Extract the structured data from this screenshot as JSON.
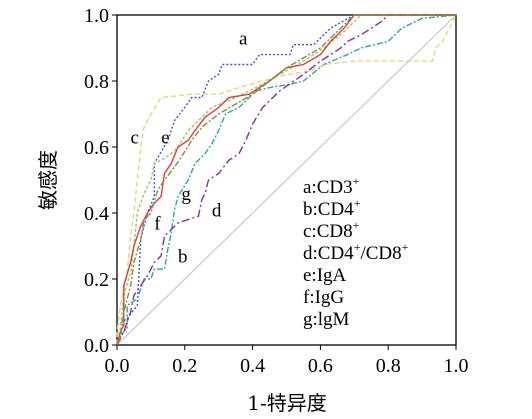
{
  "chart_data": {
    "type": "line",
    "title": "",
    "xlabel": "1-特异度",
    "ylabel": "敏感度",
    "xlim": [
      0,
      1
    ],
    "ylim": [
      0,
      1
    ],
    "grid": false,
    "legend_position": "bottom-right",
    "x_ticks": [
      "0.0",
      "0.2",
      "0.4",
      "0.6",
      "0.8",
      "1.0"
    ],
    "y_ticks": [
      "0.0",
      "0.2",
      "0.4",
      "0.6",
      "0.8",
      "1.0"
    ],
    "reference_line": {
      "x": [
        0,
        1
      ],
      "y": [
        0,
        1
      ],
      "color": "#c8c8c8"
    },
    "legend": [
      {
        "key": "a",
        "sep": ":",
        "base": "CD3",
        "sup": "+",
        "base2": "",
        "sup2": ""
      },
      {
        "key": "b",
        "sep": ":",
        "base": "CD4",
        "sup": "+",
        "base2": "",
        "sup2": ""
      },
      {
        "key": "c",
        "sep": ":",
        "base": "CD8",
        "sup": "+",
        "base2": "",
        "sup2": ""
      },
      {
        "key": "d",
        "sep": ":",
        "base": "CD4",
        "sup": "+",
        "base2": "/CD8",
        "sup2": "+"
      },
      {
        "key": "e",
        "sep": ":",
        "base": "IgA",
        "sup": "",
        "base2": "",
        "sup2": ""
      },
      {
        "key": "f",
        "sep": ":",
        "base": "IgG",
        "sup": "",
        "base2": "",
        "sup2": ""
      },
      {
        "key": "g",
        "sep": ":",
        "base": "lgM",
        "sup": "",
        "base2": "",
        "sup2": ""
      }
    ],
    "series": [
      {
        "id": "a",
        "label": "a",
        "label_at": [
          0.36,
          0.91
        ],
        "color": "#3a55c8",
        "dash": "2,2",
        "points": [
          [
            0,
            0
          ],
          [
            0,
            0.06
          ],
          [
            0.03,
            0.08
          ],
          [
            0.06,
            0.12
          ],
          [
            0.07,
            0.32
          ],
          [
            0.09,
            0.4
          ],
          [
            0.11,
            0.45
          ],
          [
            0.11,
            0.55
          ],
          [
            0.15,
            0.62
          ],
          [
            0.17,
            0.68
          ],
          [
            0.2,
            0.72
          ],
          [
            0.22,
            0.75
          ],
          [
            0.25,
            0.75
          ],
          [
            0.27,
            0.8
          ],
          [
            0.3,
            0.82
          ],
          [
            0.31,
            0.85
          ],
          [
            0.4,
            0.85
          ],
          [
            0.42,
            0.88
          ],
          [
            0.51,
            0.88
          ],
          [
            0.52,
            0.91
          ],
          [
            0.58,
            0.91
          ],
          [
            0.6,
            0.93
          ],
          [
            0.63,
            0.96
          ],
          [
            0.7,
            1.0
          ],
          [
            1.0,
            1.0
          ]
        ]
      },
      {
        "id": "b",
        "label": "b",
        "label_at": [
          0.18,
          0.25
        ],
        "color": "#2aa6a6",
        "dash": "6,2,2,2",
        "points": [
          [
            0,
            0
          ],
          [
            0.01,
            0.03
          ],
          [
            0.03,
            0.05
          ],
          [
            0.03,
            0.12
          ],
          [
            0.06,
            0.14
          ],
          [
            0.08,
            0.2
          ],
          [
            0.1,
            0.2
          ],
          [
            0.11,
            0.23
          ],
          [
            0.14,
            0.23
          ],
          [
            0.15,
            0.29
          ],
          [
            0.16,
            0.34
          ],
          [
            0.17,
            0.41
          ],
          [
            0.18,
            0.45
          ],
          [
            0.21,
            0.5
          ],
          [
            0.23,
            0.55
          ],
          [
            0.26,
            0.58
          ],
          [
            0.28,
            0.61
          ],
          [
            0.3,
            0.65
          ],
          [
            0.32,
            0.7
          ],
          [
            0.36,
            0.72
          ],
          [
            0.41,
            0.77
          ],
          [
            0.45,
            0.78
          ],
          [
            0.51,
            0.79
          ],
          [
            0.55,
            0.8
          ],
          [
            0.61,
            0.85
          ],
          [
            0.68,
            0.88
          ],
          [
            0.72,
            0.9
          ],
          [
            0.8,
            0.92
          ],
          [
            0.84,
            0.96
          ],
          [
            0.9,
            0.99
          ],
          [
            1.0,
            1.0
          ]
        ]
      },
      {
        "id": "c",
        "label": "c",
        "label_at": [
          0.04,
          0.61
        ],
        "color": "#e0d878",
        "dash": "5,3",
        "points": [
          [
            0,
            0
          ],
          [
            0,
            0.04
          ],
          [
            0.01,
            0.12
          ],
          [
            0.03,
            0.22
          ],
          [
            0.04,
            0.33
          ],
          [
            0.05,
            0.4
          ],
          [
            0.06,
            0.5
          ],
          [
            0.07,
            0.6
          ],
          [
            0.08,
            0.66
          ],
          [
            0.1,
            0.7
          ],
          [
            0.13,
            0.75
          ],
          [
            0.22,
            0.76
          ],
          [
            0.3,
            0.76
          ],
          [
            0.36,
            0.78
          ],
          [
            0.43,
            0.8
          ],
          [
            0.5,
            0.82
          ],
          [
            0.57,
            0.83
          ],
          [
            0.61,
            0.85
          ],
          [
            0.7,
            0.86
          ],
          [
            0.93,
            0.86
          ],
          [
            0.94,
            0.9
          ],
          [
            0.96,
            0.92
          ],
          [
            1.0,
            1.0
          ]
        ]
      },
      {
        "id": "d",
        "label": "d",
        "label_at": [
          0.28,
          0.39
        ],
        "color": "#8a2aa6",
        "dash": "8,3,2,3",
        "points": [
          [
            0,
            0
          ],
          [
            0.02,
            0.04
          ],
          [
            0.04,
            0.1
          ],
          [
            0.05,
            0.15
          ],
          [
            0.07,
            0.18
          ],
          [
            0.09,
            0.21
          ],
          [
            0.11,
            0.25
          ],
          [
            0.13,
            0.27
          ],
          [
            0.14,
            0.33
          ],
          [
            0.16,
            0.35
          ],
          [
            0.17,
            0.36
          ],
          [
            0.18,
            0.37
          ],
          [
            0.21,
            0.38
          ],
          [
            0.24,
            0.39
          ],
          [
            0.25,
            0.44
          ],
          [
            0.26,
            0.46
          ],
          [
            0.27,
            0.5
          ],
          [
            0.3,
            0.52
          ],
          [
            0.33,
            0.56
          ],
          [
            0.36,
            0.58
          ],
          [
            0.38,
            0.62
          ],
          [
            0.4,
            0.67
          ],
          [
            0.43,
            0.72
          ],
          [
            0.48,
            0.77
          ],
          [
            0.55,
            0.82
          ],
          [
            0.6,
            0.86
          ],
          [
            0.63,
            0.88
          ],
          [
            0.66,
            0.9
          ],
          [
            0.68,
            0.92
          ],
          [
            0.72,
            0.94
          ],
          [
            0.75,
            0.96
          ],
          [
            0.78,
            0.98
          ],
          [
            0.8,
            1.0
          ],
          [
            1.0,
            1.0
          ]
        ]
      },
      {
        "id": "e",
        "label": "e",
        "label_at": [
          0.13,
          0.61
        ],
        "color": "#9cc66a",
        "dash": "3,2",
        "points": [
          [
            0,
            0
          ],
          [
            0.01,
            0.05
          ],
          [
            0.02,
            0.15
          ],
          [
            0.04,
            0.22
          ],
          [
            0.05,
            0.3
          ],
          [
            0.06,
            0.4
          ],
          [
            0.08,
            0.46
          ],
          [
            0.1,
            0.5
          ],
          [
            0.11,
            0.55
          ],
          [
            0.13,
            0.56
          ],
          [
            0.16,
            0.58
          ],
          [
            0.18,
            0.6
          ],
          [
            0.21,
            0.65
          ],
          [
            0.24,
            0.68
          ],
          [
            0.28,
            0.72
          ],
          [
            0.35,
            0.75
          ],
          [
            0.41,
            0.78
          ],
          [
            0.48,
            0.82
          ],
          [
            0.55,
            0.86
          ],
          [
            0.61,
            0.9
          ],
          [
            0.67,
            0.95
          ],
          [
            0.72,
            1.0
          ],
          [
            1.0,
            1.0
          ]
        ]
      },
      {
        "id": "f",
        "label": "f",
        "label_at": [
          0.11,
          0.35
        ],
        "color": "#e83a3a",
        "dash": "",
        "points": [
          [
            0,
            0
          ],
          [
            0.01,
            0.04
          ],
          [
            0.02,
            0.06
          ],
          [
            0.02,
            0.18
          ],
          [
            0.04,
            0.25
          ],
          [
            0.05,
            0.3
          ],
          [
            0.07,
            0.36
          ],
          [
            0.09,
            0.4
          ],
          [
            0.11,
            0.43
          ],
          [
            0.13,
            0.45
          ],
          [
            0.14,
            0.52
          ],
          [
            0.16,
            0.55
          ],
          [
            0.18,
            0.6
          ],
          [
            0.21,
            0.62
          ],
          [
            0.23,
            0.65
          ],
          [
            0.26,
            0.69
          ],
          [
            0.3,
            0.72
          ],
          [
            0.33,
            0.75
          ],
          [
            0.39,
            0.76
          ],
          [
            0.45,
            0.8
          ],
          [
            0.5,
            0.84
          ],
          [
            0.55,
            0.85
          ],
          [
            0.6,
            0.88
          ],
          [
            0.63,
            0.92
          ],
          [
            0.67,
            0.96
          ],
          [
            0.7,
            1.0
          ],
          [
            1.0,
            1.0
          ]
        ]
      },
      {
        "id": "g",
        "label": "g",
        "label_at": [
          0.19,
          0.44
        ],
        "color": "#6a9a3a",
        "dash": "6,2,2,2",
        "points": [
          [
            0,
            0
          ],
          [
            0.01,
            0.02
          ],
          [
            0.02,
            0.1
          ],
          [
            0.04,
            0.18
          ],
          [
            0.05,
            0.25
          ],
          [
            0.07,
            0.32
          ],
          [
            0.08,
            0.38
          ],
          [
            0.1,
            0.4
          ],
          [
            0.12,
            0.47
          ],
          [
            0.14,
            0.5
          ],
          [
            0.17,
            0.54
          ],
          [
            0.19,
            0.57
          ],
          [
            0.22,
            0.62
          ],
          [
            0.25,
            0.66
          ],
          [
            0.3,
            0.7
          ],
          [
            0.35,
            0.73
          ],
          [
            0.4,
            0.76
          ],
          [
            0.45,
            0.8
          ],
          [
            0.5,
            0.84
          ],
          [
            0.55,
            0.87
          ],
          [
            0.6,
            0.9
          ],
          [
            0.63,
            0.93
          ],
          [
            0.66,
            0.96
          ],
          [
            0.7,
            1.0
          ],
          [
            1.0,
            1.0
          ]
        ]
      }
    ]
  }
}
